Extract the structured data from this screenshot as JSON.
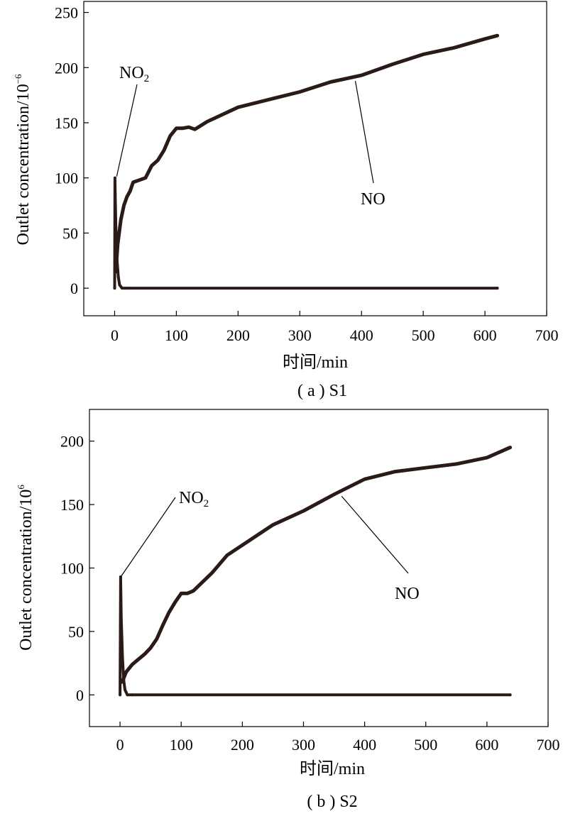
{
  "chart_data": [
    {
      "id": "a",
      "type": "line",
      "caption": "( a ) S1",
      "xlabel": "时间/min",
      "ylabel_main": "Outlet concentration/10",
      "ylabel_exp": "−6",
      "xlim": [
        -50,
        700
      ],
      "ylim": [
        -25,
        260
      ],
      "xticks": [
        0,
        100,
        200,
        300,
        400,
        500,
        600,
        700
      ],
      "yticks": [
        0,
        50,
        100,
        150,
        200,
        250
      ],
      "annotations": [
        {
          "label": "NO",
          "sub": "2",
          "series": "NO2",
          "at_x": 1,
          "at_y": 100
        },
        {
          "label": "NO",
          "sub": "",
          "series": "NO",
          "at_x": 390,
          "at_y": 193
        }
      ],
      "series": [
        {
          "name": "NO",
          "x": [
            2,
            5,
            10,
            15,
            20,
            25,
            30,
            40,
            50,
            60,
            70,
            80,
            90,
            100,
            110,
            120,
            130,
            150,
            200,
            250,
            300,
            350,
            400,
            450,
            500,
            550,
            600,
            620
          ],
          "y": [
            15,
            40,
            62,
            75,
            83,
            88,
            96,
            98,
            100,
            111,
            116,
            125,
            138,
            145,
            145,
            146,
            144,
            151,
            164,
            171,
            178,
            187,
            193,
            203,
            212,
            218,
            226,
            229
          ]
        },
        {
          "name": "NO2",
          "x": [
            0,
            0.5,
            1,
            2,
            4,
            6,
            8,
            12,
            20,
            620
          ],
          "y": [
            0,
            100,
            85,
            55,
            25,
            10,
            3,
            0,
            0,
            0
          ]
        }
      ]
    },
    {
      "id": "b",
      "type": "line",
      "caption": "( b ) S2",
      "xlabel": "时间/min",
      "ylabel_main": "Outlet concentration/10",
      "ylabel_exp": "6",
      "xlim": [
        -50,
        700
      ],
      "ylim": [
        -25,
        225
      ],
      "xticks": [
        0,
        100,
        200,
        300,
        400,
        500,
        600,
        700
      ],
      "yticks": [
        0,
        50,
        100,
        150,
        200
      ],
      "annotations": [
        {
          "label": "NO",
          "sub": "2",
          "series": "NO2",
          "at_x": 0,
          "at_y": 93
        },
        {
          "label": "NO",
          "sub": "",
          "series": "NO",
          "at_x": 360,
          "at_y": 160
        }
      ],
      "series": [
        {
          "name": "NO",
          "x": [
            2,
            5,
            10,
            20,
            30,
            40,
            50,
            60,
            70,
            80,
            90,
            100,
            110,
            120,
            150,
            175,
            200,
            250,
            300,
            350,
            400,
            450,
            500,
            550,
            600,
            638
          ],
          "y": [
            10,
            12,
            18,
            24,
            28,
            32,
            37,
            44,
            55,
            65,
            73,
            80,
            80,
            82,
            96,
            110,
            118,
            134,
            145,
            158,
            170,
            176,
            179,
            182,
            187,
            195
          ]
        },
        {
          "name": "NO2",
          "x": [
            0,
            1,
            2,
            4,
            6,
            8,
            12,
            20,
            638
          ],
          "y": [
            0,
            93,
            60,
            30,
            12,
            4,
            0,
            0,
            0
          ]
        }
      ]
    }
  ]
}
